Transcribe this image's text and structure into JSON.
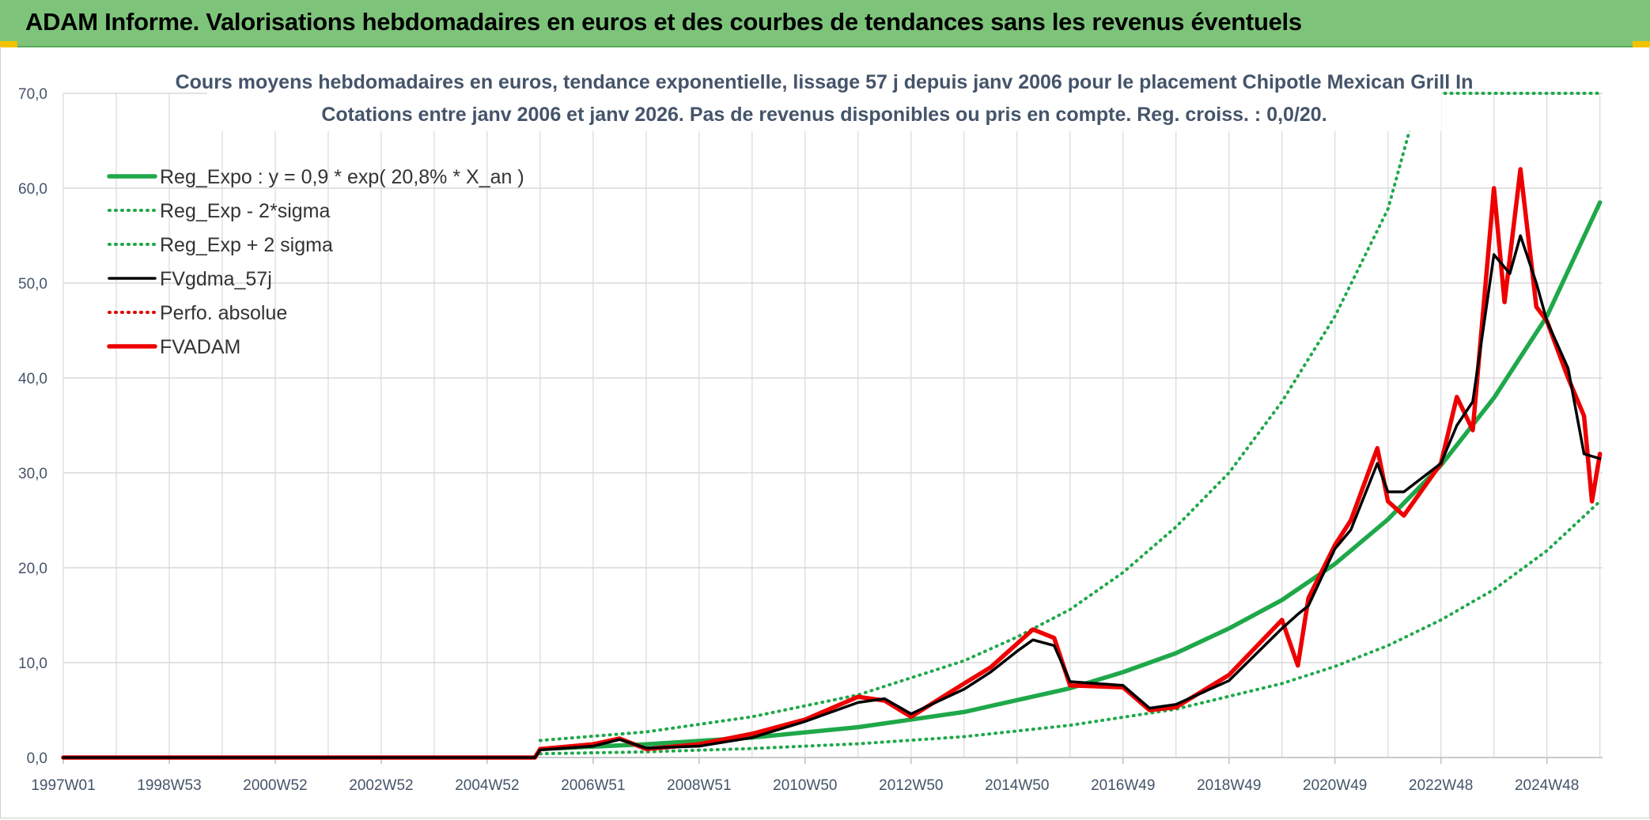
{
  "header": {
    "title": "ADAM Informe. Valorisations hebdomadaires en euros et des courbes de tendances sans les revenus éventuels"
  },
  "colors": {
    "header_bg": "#7dc47a",
    "reg_expo": "#1fa84a",
    "sigma": "#1fa84a",
    "fvgdma": "#000000",
    "perfo": "#e00000",
    "fvadam": "#ee0000",
    "grid": "#d9d9d9",
    "text": "#44546a"
  },
  "chart_data": {
    "type": "line",
    "title_line1": "Cours moyens hebdomadaires en euros, tendance exponentielle, lissage 57 j depuis janv 2006 pour le placement Chipotle Mexican Grill In",
    "title_line2": "Cotations entre janv 2006 et janv 2026. Pas de revenus disponibles ou pris en compte. Reg. croiss. : 0,0/20.",
    "xlabel": "",
    "ylabel": "",
    "ylim": [
      0,
      70
    ],
    "y_ticks": [
      "0,0",
      "10,0",
      "20,0",
      "30,0",
      "40,0",
      "50,0",
      "60,0",
      "70,0"
    ],
    "x_range_years": [
      1997.0,
      2026.05
    ],
    "x_ticks": [
      {
        "label": "1997W01",
        "year": 1997.0
      },
      {
        "label": "1998W53",
        "year": 1999.0
      },
      {
        "label": "2000W52",
        "year": 2001.0
      },
      {
        "label": "2002W52",
        "year": 2003.0
      },
      {
        "label": "2004W52",
        "year": 2005.0
      },
      {
        "label": "2006W51",
        "year": 2007.0
      },
      {
        "label": "2008W51",
        "year": 2009.0
      },
      {
        "label": "2010W50",
        "year": 2011.0
      },
      {
        "label": "2012W50",
        "year": 2013.0
      },
      {
        "label": "2014W50",
        "year": 2015.0
      },
      {
        "label": "2016W49",
        "year": 2017.0
      },
      {
        "label": "2018W49",
        "year": 2019.0
      },
      {
        "label": "2020W49",
        "year": 2021.0
      },
      {
        "label": "2022W48",
        "year": 2023.0
      },
      {
        "label": "2024W48",
        "year": 2025.0
      }
    ],
    "grid": true,
    "legend_position": "top-left",
    "series": [
      {
        "name": "Reg_Expo : y = 0,9 * exp( 20,8% *  X_an )",
        "style": "solid-thick",
        "color": "#1fa84a",
        "x": [
          2006.0,
          2008.0,
          2010.0,
          2012.0,
          2014.0,
          2016.0,
          2017.0,
          2018.0,
          2019.0,
          2020.0,
          2021.0,
          2022.0,
          2023.0,
          2024.0,
          2025.0,
          2026.0
        ],
        "y": [
          0.9,
          1.4,
          2.1,
          3.2,
          4.8,
          7.3,
          9.0,
          11.0,
          13.6,
          16.6,
          20.4,
          25.1,
          30.8,
          37.9,
          46.5,
          58.5
        ]
      },
      {
        "name": "Reg_Exp - 2*sigma",
        "style": "dotted",
        "color": "#1fa84a",
        "x": [
          2006.0,
          2008.0,
          2010.0,
          2012.0,
          2014.0,
          2016.0,
          2018.0,
          2020.0,
          2021.0,
          2022.0,
          2023.0,
          2024.0,
          2025.0,
          2026.0
        ],
        "y": [
          0.4,
          0.6,
          0.95,
          1.45,
          2.2,
          3.4,
          5.1,
          7.8,
          9.6,
          11.8,
          14.5,
          17.7,
          21.8,
          27.0
        ]
      },
      {
        "name": "Reg_Exp + 2 sigma",
        "style": "dotted",
        "color": "#1fa84a",
        "x": [
          2006.0,
          2008.0,
          2010.0,
          2012.0,
          2014.0,
          2015.0,
          2016.0,
          2017.0,
          2018.0,
          2019.0,
          2020.0,
          2021.0,
          2022.0,
          2022.6,
          2023.0,
          2024.0,
          2025.0,
          2026.0
        ],
        "y": [
          1.8,
          2.7,
          4.3,
          6.6,
          10.2,
          12.7,
          15.6,
          19.5,
          24.3,
          30.0,
          37.5,
          46.5,
          57.8,
          70.0,
          70.0,
          70.0,
          70.0,
          70.0
        ]
      },
      {
        "name": "FVgdma_57j",
        "style": "solid",
        "color": "#000000",
        "x": [
          1997.0,
          2005.9,
          2006.0,
          2007.0,
          2007.5,
          2008.0,
          2009.0,
          2010.0,
          2011.0,
          2012.0,
          2012.5,
          2013.0,
          2014.0,
          2014.5,
          2015.0,
          2015.3,
          2015.7,
          2016.0,
          2017.0,
          2017.5,
          2018.0,
          2019.0,
          2020.0,
          2020.3,
          2020.5,
          2021.0,
          2021.3,
          2021.8,
          2022.0,
          2022.3,
          2023.0,
          2023.3,
          2023.6,
          2024.0,
          2024.3,
          2024.5,
          2024.8,
          2025.0,
          2025.4,
          2025.7,
          2026.0
        ],
        "y": [
          0.0,
          0.0,
          0.8,
          1.2,
          1.9,
          1.0,
          1.2,
          2.1,
          3.8,
          5.8,
          6.2,
          4.6,
          7.2,
          9.0,
          11.2,
          12.4,
          11.8,
          8.0,
          7.6,
          5.2,
          5.6,
          8.1,
          13.6,
          15.1,
          16.0,
          22.0,
          24.0,
          31.0,
          28.0,
          28.0,
          31.0,
          35.0,
          37.5,
          53.0,
          51.0,
          55.0,
          50.0,
          46.0,
          41.0,
          32.0,
          31.5
        ]
      },
      {
        "name": "Perfo. absolue",
        "style": "dotted",
        "color": "#e00000",
        "x": [],
        "y": []
      },
      {
        "name": "FVADAM",
        "style": "solid-thick",
        "color": "#ee0000",
        "x": [
          1997.0,
          2005.9,
          2006.0,
          2007.0,
          2007.5,
          2008.0,
          2009.0,
          2010.0,
          2011.0,
          2012.0,
          2012.5,
          2013.0,
          2014.0,
          2014.5,
          2015.0,
          2015.3,
          2015.7,
          2016.0,
          2017.0,
          2017.5,
          2018.0,
          2019.0,
          2020.0,
          2020.3,
          2020.5,
          2021.0,
          2021.3,
          2021.8,
          2022.0,
          2022.3,
          2023.0,
          2023.3,
          2023.6,
          2024.0,
          2024.2,
          2024.5,
          2024.8,
          2025.0,
          2025.4,
          2025.7,
          2025.85,
          2026.0
        ],
        "y": [
          0.0,
          0.0,
          0.9,
          1.4,
          2.0,
          0.9,
          1.4,
          2.5,
          4.0,
          6.4,
          6.0,
          4.3,
          7.8,
          9.5,
          12.0,
          13.5,
          12.6,
          7.6,
          7.4,
          5.0,
          5.3,
          8.7,
          14.5,
          9.7,
          16.8,
          22.4,
          25.0,
          32.6,
          27.0,
          25.5,
          31.0,
          38.0,
          34.5,
          60.0,
          48.0,
          62.0,
          47.5,
          46.0,
          40.0,
          36.0,
          27.0,
          32.0
        ]
      }
    ]
  }
}
